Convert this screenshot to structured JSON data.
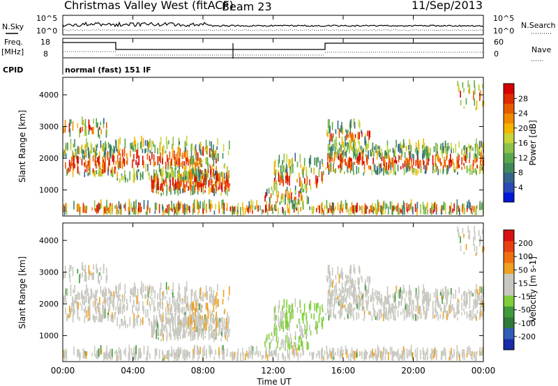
{
  "header": {
    "station": "Christmas Valley West (fitACF)",
    "beam": "Beam 23",
    "date": "11/Sep/2013"
  },
  "side_labels": {
    "nsky": "N.Sky",
    "nsearch": "N.Search",
    "freq": "Freq.",
    "freq_unit": "[MHz]",
    "nave": "Nave",
    "cpid": "CPID",
    "cpid_text": "normal (fast) 151 IF"
  },
  "noise_axis": {
    "ticks": [
      "10^5",
      "10^0"
    ]
  },
  "freq_axis": {
    "left_ticks": [
      "18",
      "8"
    ],
    "right_ticks": [
      "60",
      "0"
    ]
  },
  "chart_data": [
    {
      "type": "heatmap",
      "panel": "power",
      "xlabel": "Time UT",
      "ylabel": "Slant Range [km]",
      "x_ticks": [
        "00:00",
        "04:00",
        "08:00",
        "12:00",
        "16:00",
        "20:00",
        "00:00"
      ],
      "x_range_hours": [
        0,
        24
      ],
      "ylim_km": [
        180,
        4550
      ],
      "y_ticks": [
        1000,
        2000,
        3000,
        4000
      ],
      "colorbar": {
        "label": "Power [dB]",
        "ticks": [
          "28",
          "24",
          "20",
          "16",
          "12",
          "8",
          "4"
        ],
        "colors": [
          "#0018d8",
          "#2c4ab8",
          "#33668a",
          "#3f8a5a",
          "#5aa84e",
          "#8fc24a",
          "#c8d43a",
          "#f4b400",
          "#f08a00",
          "#e85a00",
          "#e02a00",
          "#d60000"
        ]
      }
    },
    {
      "type": "heatmap",
      "panel": "velocity",
      "xlabel": "Time UT",
      "ylabel": "Slant Range [km]",
      "x_ticks": [
        "00:00",
        "04:00",
        "08:00",
        "12:00",
        "16:00",
        "20:00",
        "00:00"
      ],
      "x_range_hours": [
        0,
        24
      ],
      "ylim_km": [
        180,
        4550
      ],
      "y_ticks": [
        1000,
        2000,
        3000,
        4000
      ],
      "colorbar": {
        "label": "Velocity [m s-1]",
        "ticks": [
          "200",
          "100",
          "50",
          "15",
          "-15",
          "-50",
          "-100",
          "-200"
        ],
        "colors": [
          "#1a2aa8",
          "#2f5db8",
          "#2f7a3a",
          "#3f9a3a",
          "#7fcf3a",
          "#c8c8c0",
          "#c8c8c0",
          "#f0a020",
          "#f07010",
          "#e84010",
          "#d81010"
        ]
      }
    }
  ]
}
